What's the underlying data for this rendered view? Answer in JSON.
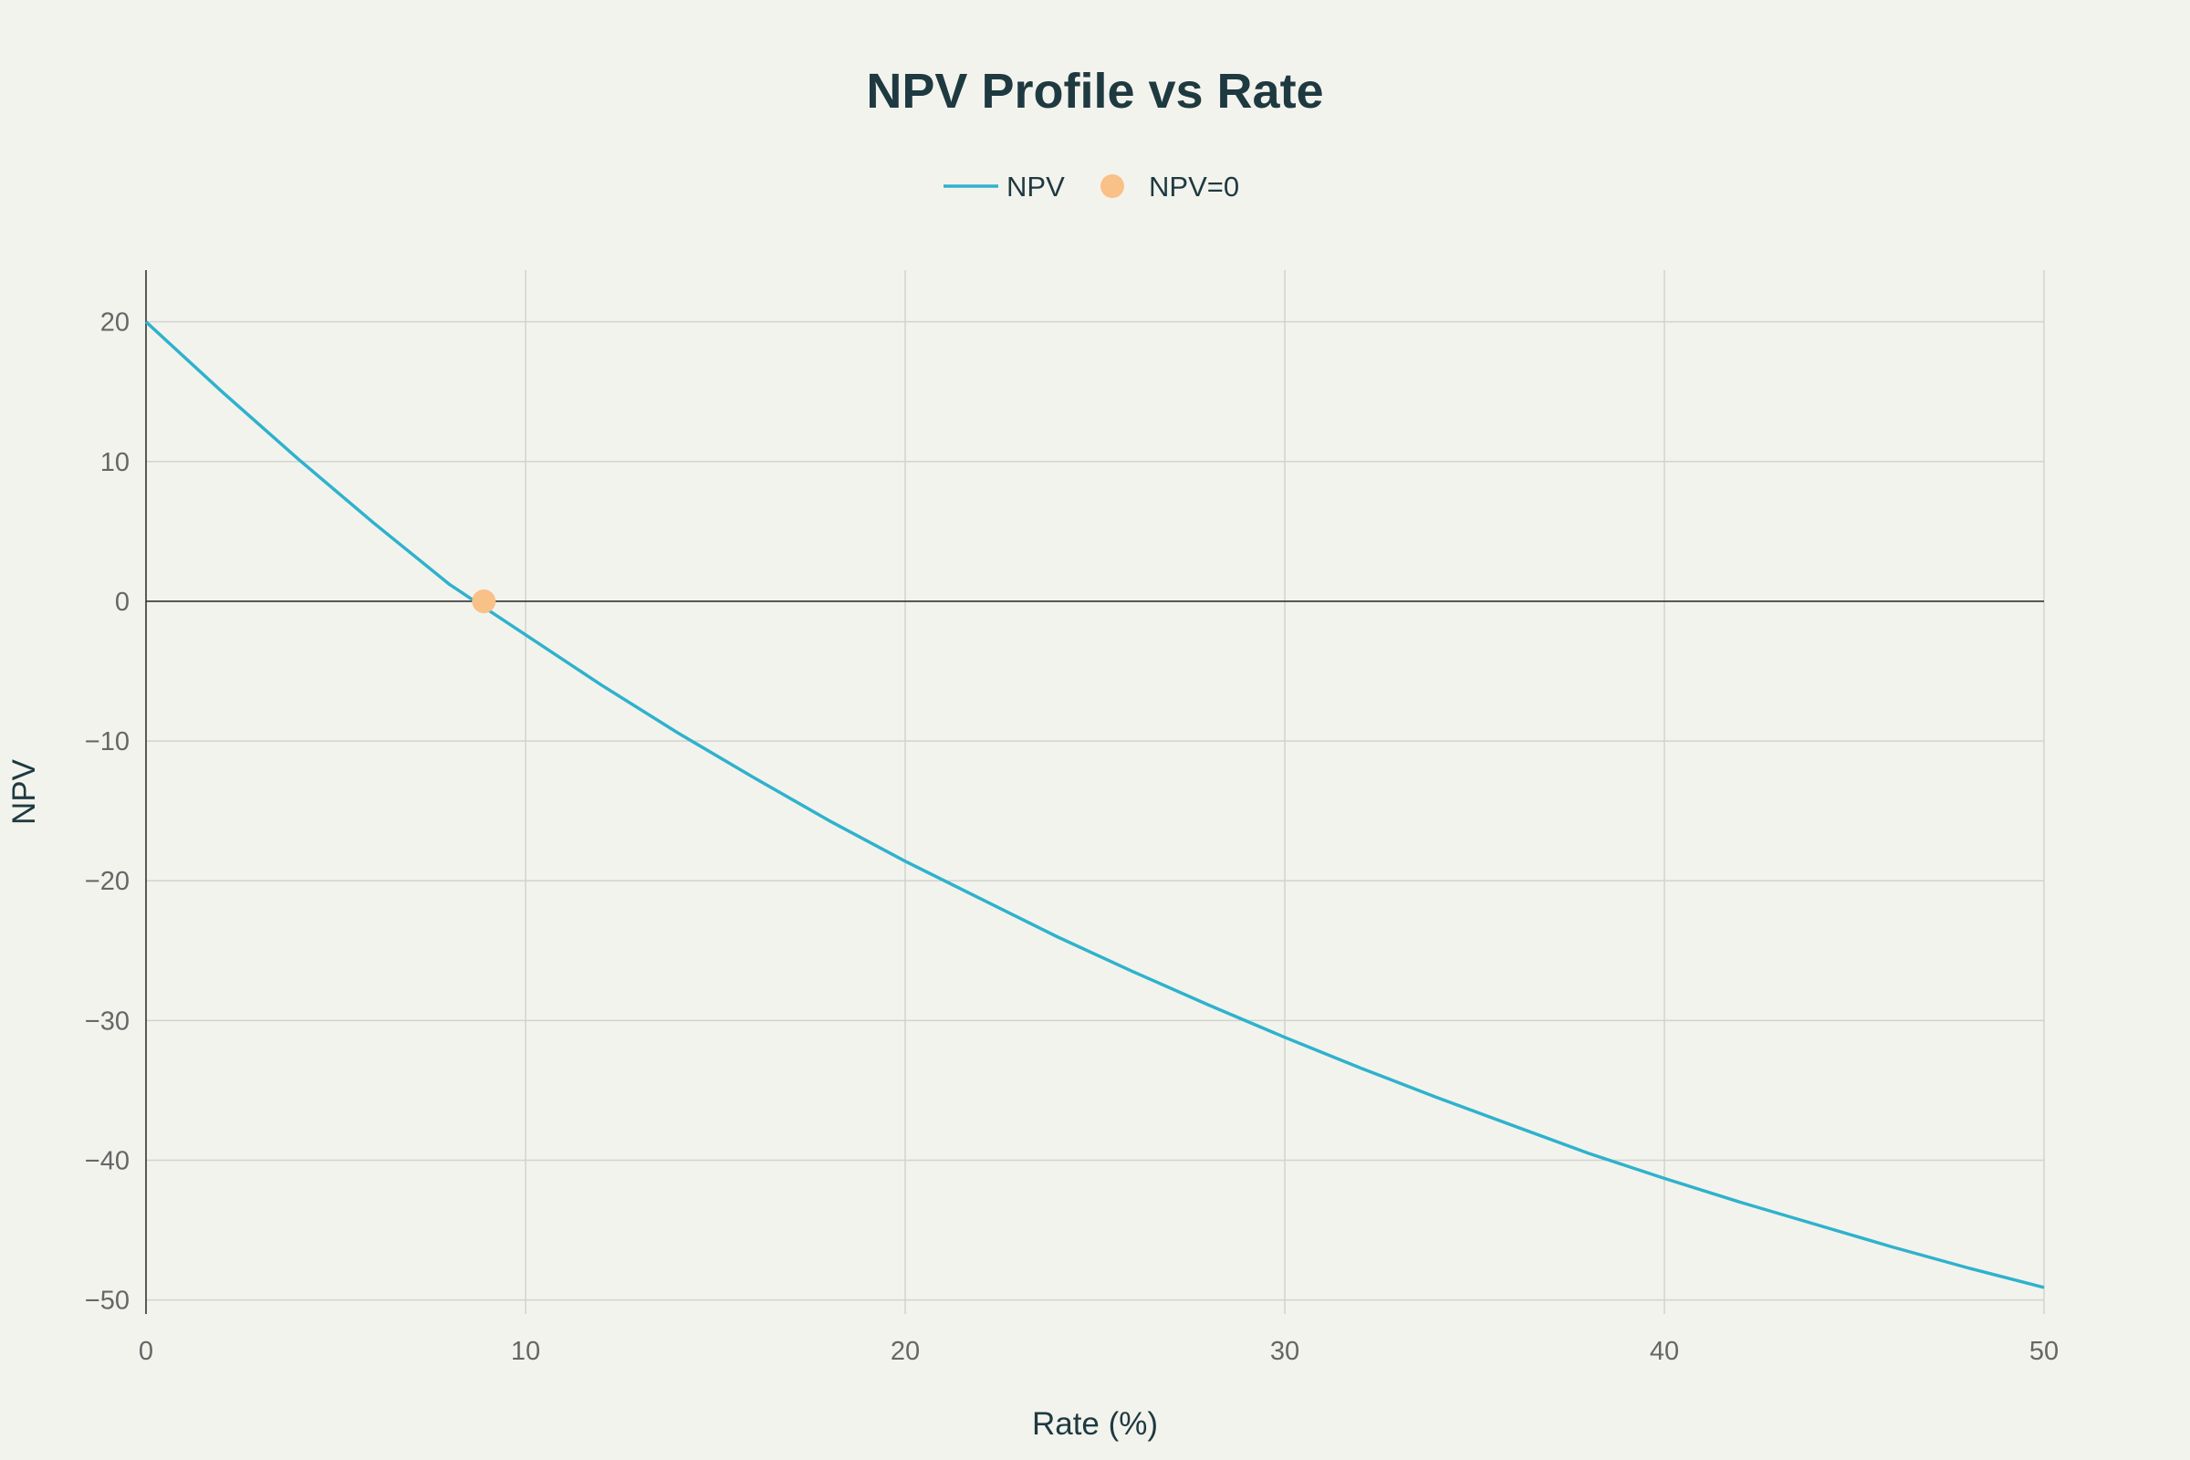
{
  "chart_data": {
    "type": "line",
    "title": "NPV Profile vs Rate",
    "xlabel": "Rate (%)",
    "ylabel": "NPV",
    "xlim": [
      0,
      50
    ],
    "ylim": [
      -51,
      23.7
    ],
    "xticks": [
      0,
      10,
      20,
      30,
      40,
      50
    ],
    "yticks": [
      20,
      10,
      0,
      -10,
      -20,
      -30,
      -40,
      -50
    ],
    "xtick_labels": [
      "0",
      "10",
      "20",
      "30",
      "40",
      "50"
    ],
    "ytick_labels": [
      "20",
      "10",
      "0",
      "−10",
      "−20",
      "−30",
      "−40",
      "−50"
    ],
    "grid": true,
    "legend_position": "top-center",
    "series": [
      {
        "name": "NPV",
        "kind": "line",
        "color": "#2fb2cc",
        "x": [
          0,
          2,
          4,
          6,
          8,
          10,
          12,
          14,
          16,
          18,
          20,
          22,
          24,
          26,
          28,
          30,
          32,
          34,
          36,
          38,
          40,
          42,
          44,
          46,
          48,
          50
        ],
        "y": [
          20,
          15,
          10.2,
          5.6,
          1.2,
          -2.4,
          -6,
          -9.4,
          -12.6,
          -15.7,
          -18.6,
          -21.3,
          -24,
          -26.5,
          -28.9,
          -31.2,
          -33.4,
          -35.5,
          -37.5,
          -39.5,
          -41.3,
          -43,
          -44.6,
          -46.2,
          -47.7,
          -49.1
        ]
      },
      {
        "name": "NPV=0",
        "kind": "marker",
        "color": "#f9c088",
        "x": [
          8.9
        ],
        "y": [
          0
        ]
      }
    ]
  }
}
